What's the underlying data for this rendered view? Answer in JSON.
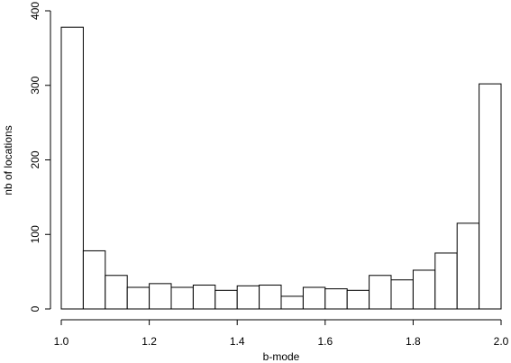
{
  "chart_data": {
    "type": "bar",
    "title": "",
    "xlabel": "b-mode",
    "ylabel": "nb of locations",
    "xlim": [
      1.0,
      2.0
    ],
    "ylim": [
      0,
      400
    ],
    "x_ticks": [
      1.0,
      1.2,
      1.4,
      1.6,
      1.8,
      2.0
    ],
    "x_tick_labels": [
      "1.0",
      "1.2",
      "1.4",
      "1.6",
      "1.8",
      "2.0"
    ],
    "y_ticks": [
      0,
      100,
      200,
      300,
      400
    ],
    "y_tick_labels": [
      "0",
      "100",
      "200",
      "300",
      "400"
    ],
    "bin_width": 0.05,
    "bin_edges": [
      1.0,
      1.05,
      1.1,
      1.15,
      1.2,
      1.25,
      1.3,
      1.35,
      1.4,
      1.45,
      1.5,
      1.55,
      1.6,
      1.65,
      1.7,
      1.75,
      1.8,
      1.85,
      1.9,
      1.95,
      2.0
    ],
    "values": [
      378,
      78,
      45,
      29,
      34,
      29,
      32,
      25,
      31,
      32,
      17,
      29,
      27,
      25,
      45,
      39,
      52,
      75,
      115,
      302
    ],
    "grid": false,
    "legend": "none"
  }
}
